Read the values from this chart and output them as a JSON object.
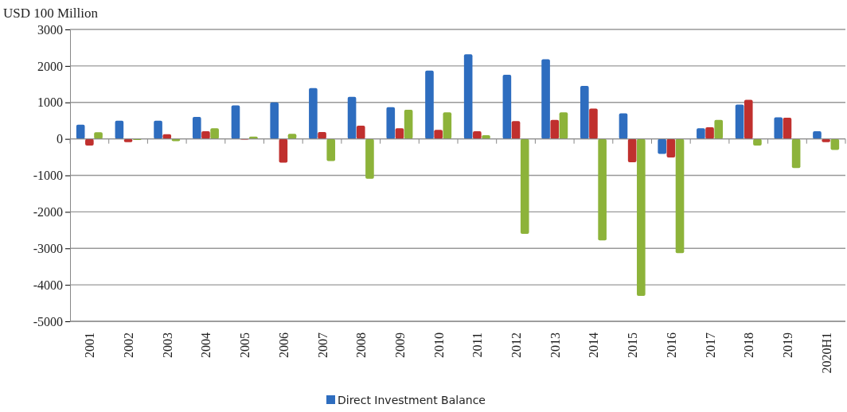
{
  "chart_data": {
    "type": "bar",
    "ylabel": "USD 100 Million",
    "categories": [
      "2001",
      "2002",
      "2003",
      "2004",
      "2005",
      "2006",
      "2007",
      "2008",
      "2009",
      "2010",
      "2011",
      "2012",
      "2013",
      "2014",
      "2015",
      "2016",
      "2017",
      "2018",
      "2019",
      "2020H1"
    ],
    "series": [
      {
        "name": "Direct Investment Balance",
        "color": "#2e6dbf",
        "values": [
          390,
          500,
          500,
          600,
          920,
          1000,
          1390,
          1150,
          870,
          1870,
          2320,
          1760,
          2180,
          1450,
          700,
          -410,
          290,
          940,
          590,
          210
        ]
      },
      {
        "color": "#c0302e",
        "values": [
          -180,
          -90,
          130,
          210,
          -20,
          -650,
          190,
          360,
          290,
          250,
          210,
          490,
          520,
          830,
          -640,
          -510,
          320,
          1070,
          580,
          -90
        ]
      },
      {
        "color": "#8db33a",
        "values": [
          180,
          -30,
          -60,
          290,
          60,
          140,
          -610,
          -1090,
          800,
          730,
          100,
          -2600,
          730,
          -2780,
          -4300,
          -3130,
          520,
          -180,
          -800,
          -300
        ]
      }
    ],
    "ylim": [
      -5000,
      3000
    ],
    "yticks": [
      -5000,
      -4000,
      -3000,
      -2000,
      -1000,
      0,
      1000,
      2000,
      3000
    ],
    "grid": "y",
    "legend": "bottom"
  }
}
